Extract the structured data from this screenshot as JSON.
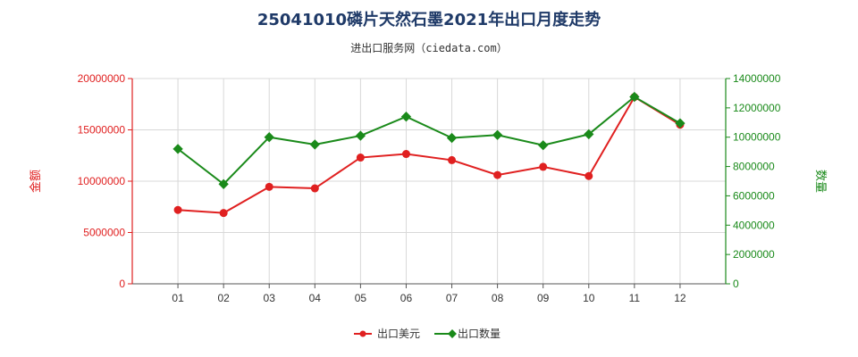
{
  "chart_data": {
    "type": "line",
    "title": "25041010磷片天然石墨2021年出口月度走势",
    "subtitle": "进出口服务网（ciedata.com）",
    "categories": [
      "01",
      "02",
      "03",
      "04",
      "05",
      "06",
      "07",
      "08",
      "09",
      "10",
      "11",
      "12"
    ],
    "y_left": {
      "label": "金额",
      "range": [
        0,
        20000000
      ],
      "ticks": [
        "0",
        "5000000",
        "10000000",
        "15000000",
        "20000000"
      ],
      "color": "#e02020"
    },
    "y_right": {
      "label": "数量",
      "range": [
        0,
        14000000
      ],
      "ticks": [
        "0",
        "2000000",
        "4000000",
        "6000000",
        "8000000",
        "10000000",
        "12000000",
        "14000000"
      ],
      "color": "#1a8a1a"
    },
    "series": [
      {
        "name": "出口美元",
        "axis": "left",
        "color": "#e02020",
        "values": [
          7200000,
          6900000,
          9450000,
          9300000,
          12300000,
          12650000,
          12050000,
          10600000,
          11400000,
          10500000,
          18200000,
          15500000
        ]
      },
      {
        "name": "出口数量",
        "axis": "right",
        "color": "#1a8a1a",
        "values": [
          9200000,
          6800000,
          10000000,
          9500000,
          10100000,
          11400000,
          9950000,
          10150000,
          9450000,
          10200000,
          12750000,
          10950000
        ]
      }
    ],
    "grid": true,
    "legend": "bottom-center"
  }
}
